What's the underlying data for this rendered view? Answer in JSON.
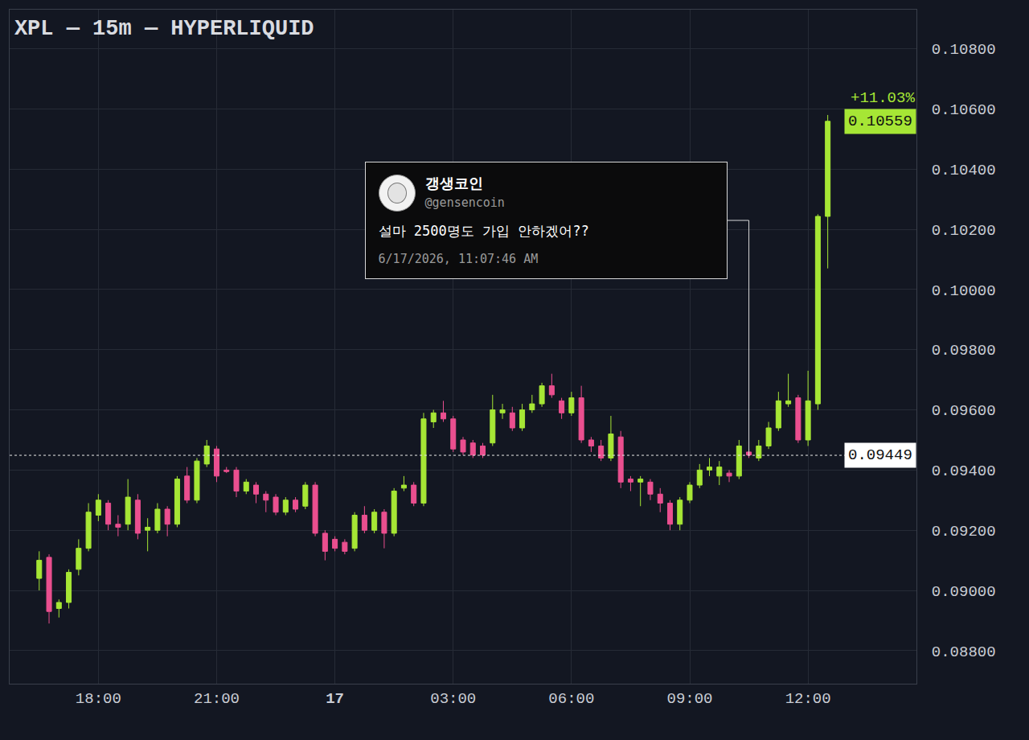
{
  "chart_data": {
    "type": "candlestick",
    "title": "XPL — 15m — HYPERLIQUID",
    "categories": [
      null,
      null,
      null,
      null,
      null,
      null,
      "18:00",
      null,
      null,
      null,
      null,
      null,
      null,
      null,
      null,
      null,
      null,
      null,
      "21:00",
      null,
      null,
      null,
      null,
      null,
      null,
      null,
      null,
      null,
      null,
      null,
      "17",
      null,
      null,
      null,
      null,
      null,
      null,
      null,
      null,
      null,
      null,
      null,
      "03:00",
      null,
      null,
      null,
      null,
      null,
      null,
      null,
      null,
      null,
      null,
      null,
      "06:00",
      null,
      null,
      null,
      null,
      null,
      null,
      null,
      null,
      null,
      null,
      null,
      "09:00",
      null,
      null,
      null,
      null,
      null,
      null,
      null,
      null,
      null,
      null,
      null,
      "12:00",
      null,
      null
    ],
    "open": [
      0.0904,
      0.0911,
      0.0894,
      0.0896,
      0.0907,
      0.0914,
      0.0925,
      0.0929,
      0.0922,
      0.0922,
      0.093,
      0.092,
      0.092,
      0.0927,
      0.0922,
      0.0938,
      0.093,
      0.0942,
      0.0947,
      0.094,
      0.094,
      0.0933,
      0.0935,
      0.0932,
      0.0931,
      0.0926,
      0.093,
      0.0928,
      0.0935,
      0.0919,
      0.0917,
      0.0916,
      0.0914,
      0.0925,
      0.092,
      0.0926,
      0.0919,
      0.0934,
      0.0935,
      0.0929,
      0.0956,
      0.0959,
      0.0957,
      0.095,
      0.0949,
      0.0948,
      0.0949,
      0.0959,
      0.0959,
      0.0954,
      0.096,
      0.0962,
      0.0968,
      0.0963,
      0.0959,
      0.0964,
      0.095,
      0.0948,
      0.0944,
      0.0951,
      0.0937,
      0.0936,
      0.0936,
      0.0932,
      0.0929,
      0.0922,
      0.093,
      0.0935,
      0.094,
      0.0938,
      0.0939,
      0.0938,
      0.0946,
      0.0944,
      0.0948,
      0.0954,
      0.0962,
      0.0964,
      0.095,
      0.0962,
      0.10243
    ],
    "high": [
      0.0913,
      0.0912,
      0.0897,
      0.0907,
      0.0917,
      0.0929,
      0.0932,
      0.093,
      0.0925,
      0.0937,
      0.0932,
      0.0924,
      0.0929,
      0.0928,
      0.0938,
      0.0941,
      0.0944,
      0.095,
      0.0948,
      0.0941,
      0.0941,
      0.0937,
      0.0936,
      0.0933,
      0.0932,
      0.0931,
      0.0931,
      0.0936,
      0.0936,
      0.092,
      0.0918,
      0.0917,
      0.0926,
      0.0928,
      0.0927,
      0.0927,
      0.0934,
      0.0938,
      0.0936,
      0.0959,
      0.096,
      0.0963,
      0.0958,
      0.0951,
      0.095,
      0.0949,
      0.0965,
      0.0962,
      0.0961,
      0.0962,
      0.0965,
      0.0969,
      0.0972,
      0.0964,
      0.0966,
      0.0968,
      0.0951,
      0.095,
      0.0958,
      0.0953,
      0.0938,
      0.0938,
      0.0937,
      0.0934,
      0.093,
      0.0931,
      0.0936,
      0.0942,
      0.0944,
      0.0943,
      0.094,
      0.095,
      0.0947,
      0.095,
      0.0956,
      0.0966,
      0.0972,
      0.0965,
      0.0973,
      0.1025,
      0.1058
    ],
    "low": [
      0.09,
      0.0889,
      0.0891,
      0.0894,
      0.0905,
      0.0913,
      0.0923,
      0.092,
      0.0918,
      0.092,
      0.0917,
      0.0913,
      0.0919,
      0.0918,
      0.0921,
      0.0929,
      0.0929,
      0.0941,
      0.0936,
      0.0939,
      0.0931,
      0.0932,
      0.0929,
      0.0926,
      0.0925,
      0.0925,
      0.0926,
      0.0927,
      0.0918,
      0.091,
      0.0913,
      0.0912,
      0.0913,
      0.0919,
      0.0919,
      0.0914,
      0.0918,
      0.0933,
      0.0928,
      0.0928,
      0.0954,
      0.0956,
      0.0946,
      0.0945,
      0.0944,
      0.0944,
      0.0948,
      0.0957,
      0.0953,
      0.0953,
      0.0959,
      0.0961,
      0.0964,
      0.0957,
      0.0958,
      0.0949,
      0.0946,
      0.0943,
      0.0943,
      0.0934,
      0.0933,
      0.0928,
      0.093,
      0.0926,
      0.092,
      0.092,
      0.0929,
      0.0934,
      0.0938,
      0.0935,
      0.0936,
      0.0937,
      0.0944,
      0.0943,
      0.0947,
      0.0953,
      0.0961,
      0.0949,
      0.0948,
      0.096,
      0.1007
    ],
    "close": [
      0.091,
      0.0893,
      0.0896,
      0.0906,
      0.0914,
      0.0926,
      0.093,
      0.0922,
      0.0921,
      0.0931,
      0.0919,
      0.0921,
      0.0927,
      0.0922,
      0.0937,
      0.093,
      0.0943,
      0.0948,
      0.0938,
      0.09395,
      0.0933,
      0.0936,
      0.0932,
      0.093,
      0.0926,
      0.093,
      0.0927,
      0.0935,
      0.0919,
      0.0913,
      0.0914,
      0.0913,
      0.0925,
      0.092,
      0.0926,
      0.0919,
      0.0933,
      0.0935,
      0.0929,
      0.0957,
      0.0959,
      0.0957,
      0.0947,
      0.0946,
      0.0945,
      0.0945,
      0.096,
      0.096,
      0.0954,
      0.096,
      0.0962,
      0.0968,
      0.0965,
      0.0959,
      0.0964,
      0.095,
      0.0948,
      0.0944,
      0.0952,
      0.0936,
      0.0936,
      0.0937,
      0.0932,
      0.0929,
      0.0922,
      0.093,
      0.0935,
      0.094,
      0.0941,
      0.0941,
      0.0938,
      0.0948,
      0.0945,
      0.0948,
      0.0954,
      0.0963,
      0.0963,
      0.095,
      0.0963,
      0.10243,
      0.10559
    ],
    "color": {
      "increasing": "#a6e635",
      "decreasing": "#ea4f8f"
    },
    "ylim": [
      0.0869,
      0.1093
    ],
    "yticks": [
      {
        "value": 0.088,
        "label": "0.08800"
      },
      {
        "value": 0.09,
        "label": "0.09000"
      },
      {
        "value": 0.092,
        "label": "0.09200"
      },
      {
        "value": 0.094,
        "label": "0.09400"
      },
      {
        "value": 0.096,
        "label": "0.09600"
      },
      {
        "value": 0.098,
        "label": "0.09800"
      },
      {
        "value": 0.1,
        "label": "0.10000"
      },
      {
        "value": 0.102,
        "label": "0.10200"
      },
      {
        "value": 0.104,
        "label": "0.10400"
      },
      {
        "value": 0.106,
        "label": "0.10600"
      },
      {
        "value": 0.108,
        "label": "0.10800"
      }
    ],
    "grid": true,
    "price_line": 0.09449,
    "last_price": {
      "value": 0.10559,
      "change": "+11.03%"
    },
    "annotations": [
      {
        "author": "갱생코인",
        "handle": "@gensencoin",
        "text": "설마 2500명도 가입 안하겠어??",
        "time": "6/17/2026, 11:07:46 AM",
        "x": 72,
        "y": 0.09449
      }
    ]
  }
}
